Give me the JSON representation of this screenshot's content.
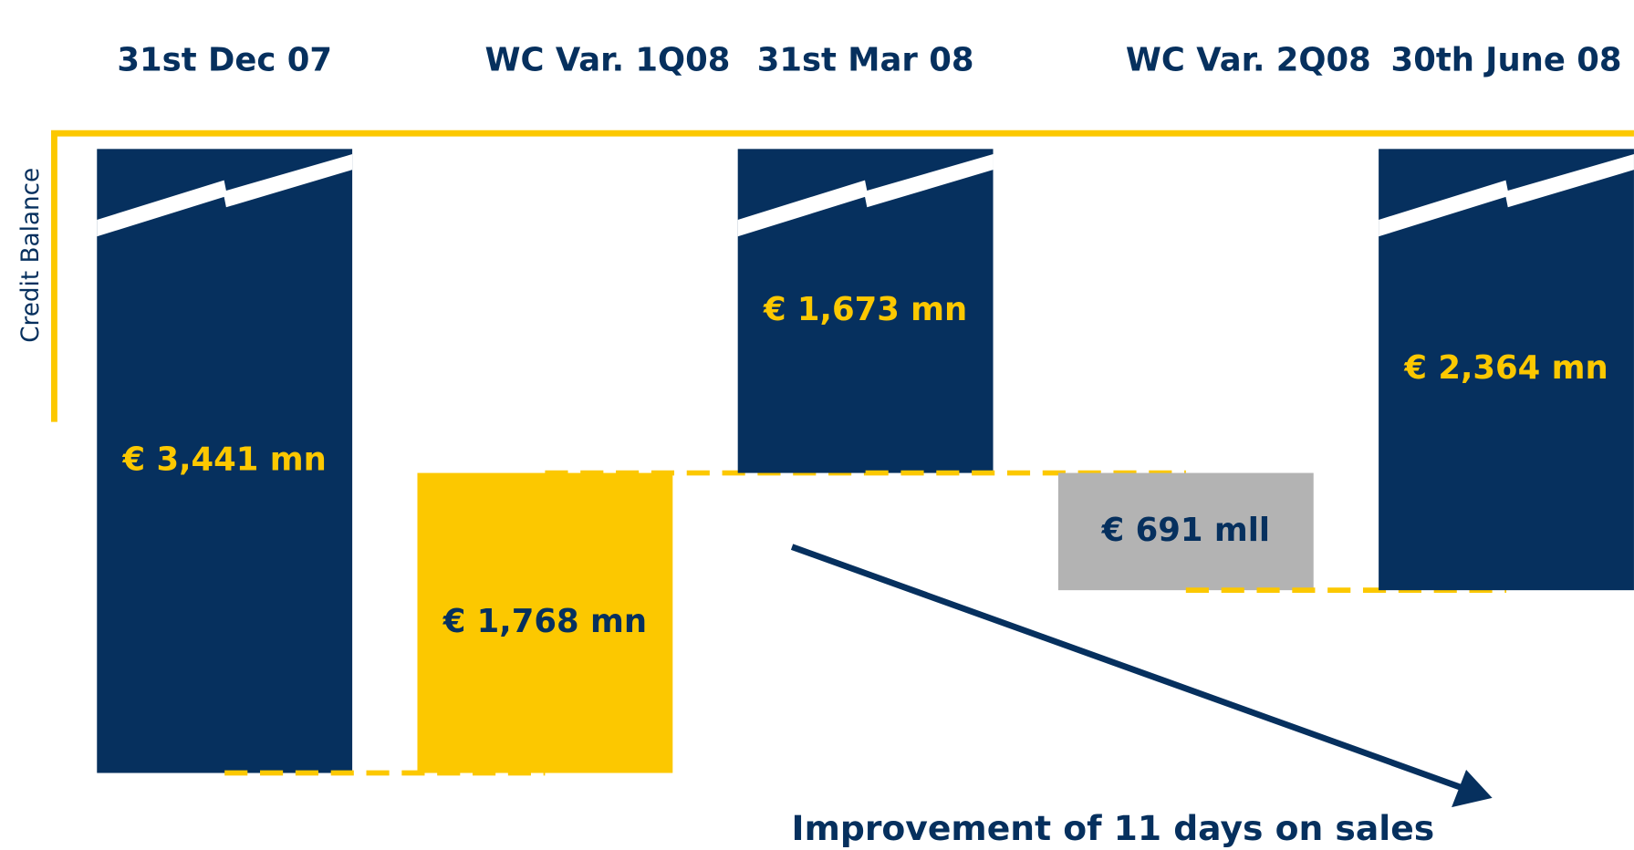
{
  "chart_data": {
    "type": "waterfall",
    "y_axis_label": "Credit Balance",
    "categories": [
      "31st Dec 07",
      "WC Var. 1Q08",
      "31st Mar 08",
      "WC Var. 2Q08",
      "30th June 08"
    ],
    "measure": [
      "total",
      "decrease",
      "total",
      "increase",
      "total"
    ],
    "values": [
      3441,
      1768,
      1673,
      691,
      2364
    ],
    "value_labels": [
      "€ 3,441 mn",
      "€ 1,768 mn",
      "€ 1,673 mn",
      "€ 691 mll",
      "€ 2,364 mn"
    ],
    "colors": [
      "#06305e",
      "#fcc800",
      "#06305e",
      "#b3b3b3",
      "#06305e"
    ],
    "label_colors": [
      "#fcc800",
      "#06305e",
      "#fcc800",
      "#06305e",
      "#fcc800"
    ],
    "connector_color": "#fcc800",
    "annotation": "Improvement of 11 days on sales"
  }
}
